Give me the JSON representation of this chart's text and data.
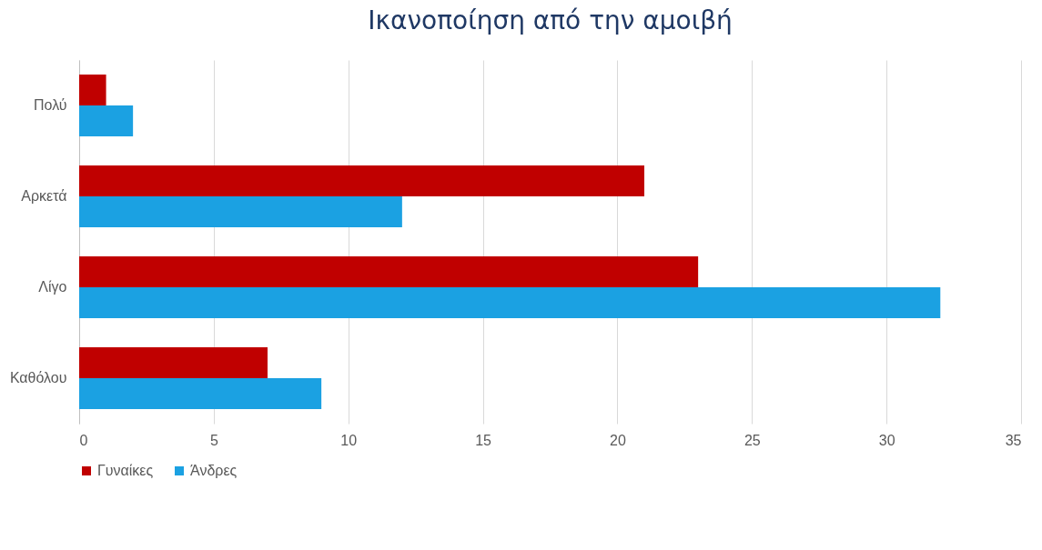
{
  "chart_data": {
    "type": "bar",
    "orientation": "horizontal",
    "title": "Ικανοποίηση από την αμοιβή",
    "categories": [
      "Πολύ",
      "Αρκετά",
      "Λίγο",
      "Καθόλου"
    ],
    "series": [
      {
        "name": "Γυναίκες",
        "color": "#c00000",
        "values": [
          1,
          21,
          23,
          7
        ]
      },
      {
        "name": "Άνδρες",
        "color": "#1ba1e2",
        "values": [
          2,
          12,
          32,
          9
        ]
      }
    ],
    "xlim": [
      0,
      35
    ],
    "xticks": [
      0,
      5,
      10,
      15,
      20,
      25,
      30,
      35
    ],
    "grid": "x",
    "legend": "bottom"
  }
}
